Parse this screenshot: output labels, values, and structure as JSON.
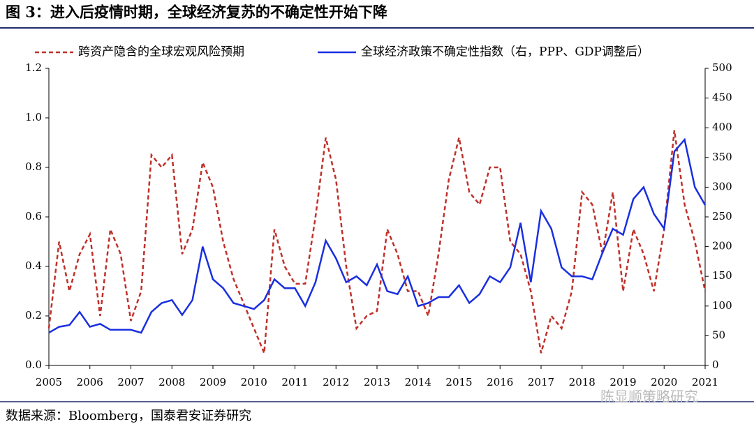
{
  "chart_data": {
    "type": "line",
    "title": "图 3：进入后疫情时期，全球经济复苏的不确定性开始下降",
    "source": "数据来源：Bloomberg，国泰君安证券研究",
    "watermark": "陈显顺策略研究",
    "x": [
      2005,
      2005.25,
      2005.5,
      2005.75,
      2006,
      2006.25,
      2006.5,
      2006.75,
      2007,
      2007.25,
      2007.5,
      2007.75,
      2008,
      2008.25,
      2008.5,
      2008.75,
      2009,
      2009.25,
      2009.5,
      2009.75,
      2010,
      2010.25,
      2010.5,
      2010.75,
      2011,
      2011.25,
      2011.5,
      2011.75,
      2012,
      2012.25,
      2012.5,
      2012.75,
      2013,
      2013.25,
      2013.5,
      2013.75,
      2014,
      2014.25,
      2014.5,
      2014.75,
      2015,
      2015.25,
      2015.5,
      2015.75,
      2016,
      2016.25,
      2016.5,
      2016.75,
      2017,
      2017.25,
      2017.5,
      2017.75,
      2018,
      2018.25,
      2018.5,
      2018.75,
      2019,
      2019.25,
      2019.5,
      2019.75,
      2020,
      2020.25,
      2020.5,
      2020.75,
      2021
    ],
    "series": [
      {
        "name": "跨资产隐含的全球宏观风险预期",
        "color": "#c0302a",
        "line_style": "dashed",
        "axis": "y",
        "values": [
          0.15,
          0.5,
          0.3,
          0.45,
          0.53,
          0.2,
          0.55,
          0.45,
          0.18,
          0.3,
          0.85,
          0.8,
          0.85,
          0.45,
          0.55,
          0.82,
          0.72,
          0.5,
          0.35,
          0.25,
          0.15,
          0.05,
          0.55,
          0.4,
          0.33,
          0.33,
          0.6,
          0.92,
          0.75,
          0.4,
          0.15,
          0.2,
          0.22,
          0.55,
          0.45,
          0.3,
          0.3,
          0.2,
          0.45,
          0.75,
          0.92,
          0.7,
          0.65,
          0.8,
          0.8,
          0.5,
          0.45,
          0.3,
          0.05,
          0.2,
          0.15,
          0.3,
          0.7,
          0.65,
          0.45,
          0.7,
          0.3,
          0.55,
          0.45,
          0.3,
          0.55,
          0.95,
          0.65,
          0.5,
          0.3
        ]
      },
      {
        "name": "全球经济政策不确定性指数（右，PPP、GDP调整后）",
        "color": "#1a2fe0",
        "line_style": "solid",
        "axis": "y2",
        "values": [
          55,
          65,
          68,
          90,
          65,
          70,
          60,
          60,
          60,
          55,
          90,
          105,
          110,
          85,
          110,
          200,
          145,
          130,
          105,
          100,
          95,
          110,
          145,
          130,
          130,
          100,
          140,
          210,
          180,
          140,
          150,
          135,
          170,
          125,
          120,
          150,
          100,
          105,
          115,
          115,
          135,
          105,
          120,
          150,
          140,
          165,
          240,
          140,
          260,
          230,
          165,
          150,
          150,
          145,
          190,
          230,
          220,
          280,
          300,
          255,
          230,
          360,
          380,
          300,
          270
        ]
      }
    ],
    "xlim": [
      2005,
      2021
    ],
    "xticks": [
      2005,
      2006,
      2007,
      2008,
      2009,
      2010,
      2011,
      2012,
      2013,
      2014,
      2015,
      2016,
      2017,
      2018,
      2019,
      2020,
      2021
    ],
    "ylim": [
      0,
      1.2
    ],
    "yticks": [
      {
        "value": 0,
        "label": "0.0"
      },
      0.2,
      0.4,
      0.6,
      0.8,
      {
        "value": 1,
        "label": "1.0"
      },
      1.2
    ],
    "y2lim": [
      0,
      500
    ],
    "y2ticks": [
      0,
      50,
      100,
      150,
      200,
      250,
      300,
      350,
      400,
      450,
      500
    ]
  }
}
